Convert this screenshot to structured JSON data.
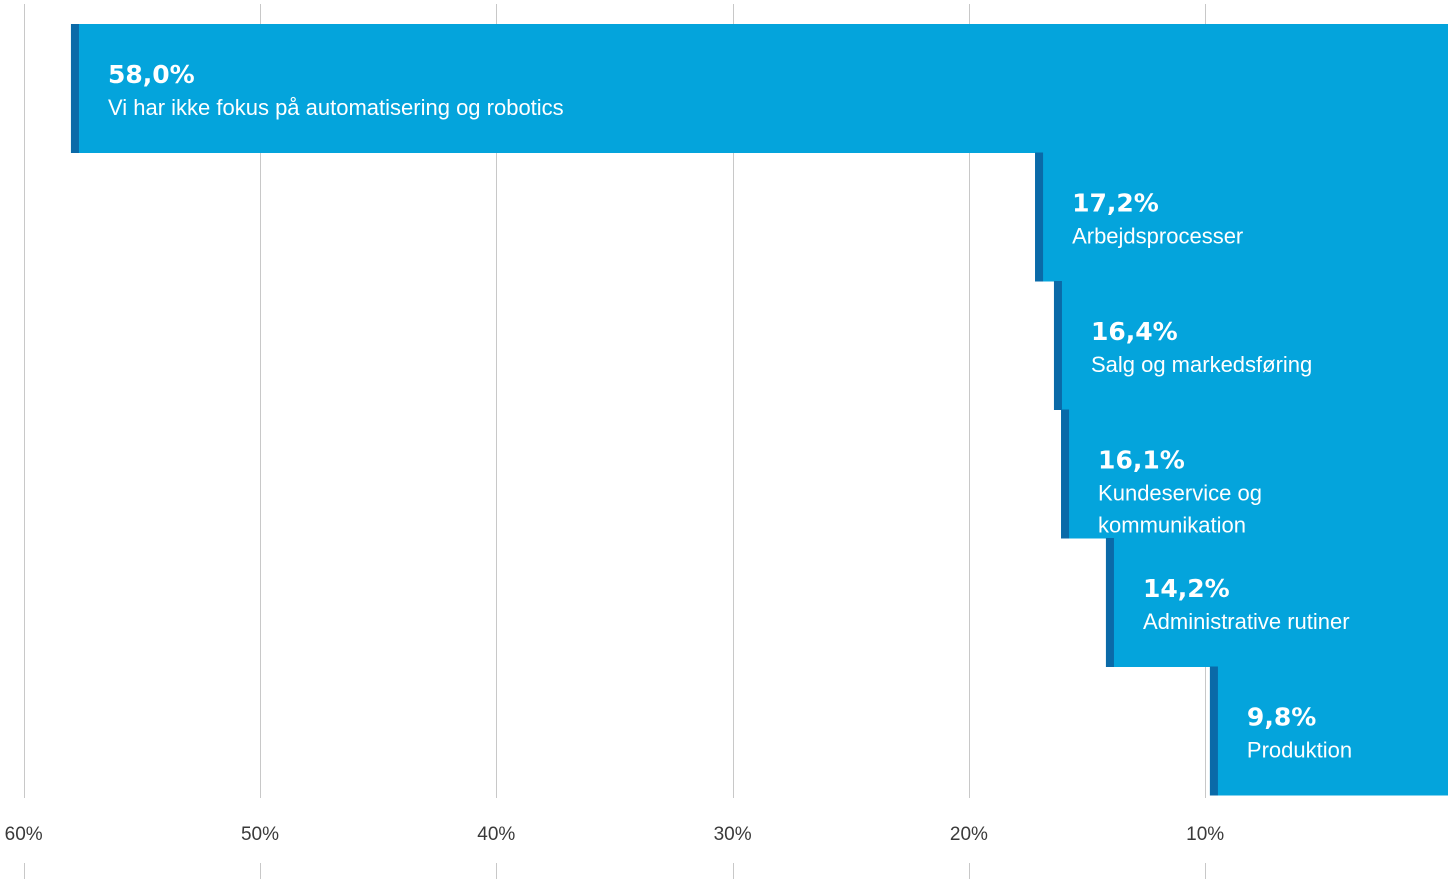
{
  "chart_data": {
    "type": "bar",
    "orientation": "horizontal",
    "axis_direction": "reversed",
    "xlim": [
      0,
      60
    ],
    "x_ticks": [
      60,
      50,
      40,
      30,
      20,
      10
    ],
    "x_tick_labels": [
      "60%",
      "50%",
      "40%",
      "30%",
      "20%",
      "10%"
    ],
    "grid": true,
    "bars": [
      {
        "value": 58.0,
        "value_label": "58,0%",
        "label_lines": [
          "Vi har ikke fokus på automatisering og robotics"
        ]
      },
      {
        "value": 17.2,
        "value_label": "17,2%",
        "label_lines": [
          "Arbejdsprocesser"
        ]
      },
      {
        "value": 16.4,
        "value_label": "16,4%",
        "label_lines": [
          "Salg og markedsføring"
        ]
      },
      {
        "value": 16.1,
        "value_label": "16,1%",
        "label_lines": [
          "Kundeservice og",
          "kommunikation"
        ]
      },
      {
        "value": 14.2,
        "value_label": "14,2%",
        "label_lines": [
          "Administrative rutiner"
        ]
      },
      {
        "value": 9.8,
        "value_label": "9,8%",
        "label_lines": [
          "Produktion"
        ]
      }
    ],
    "colors": {
      "bar": "#04a4dc",
      "bar_edge": "#0a6aa8",
      "text": "#ffffff",
      "grid": "#c8c8c8",
      "tick_text": "#3a3a3a"
    }
  }
}
